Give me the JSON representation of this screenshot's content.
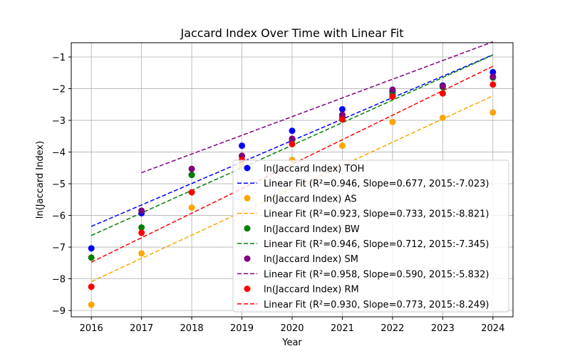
{
  "chart_data": {
    "type": "scatter",
    "title": "Jaccard Index Over Time with Linear Fit",
    "xlabel": "Year",
    "ylabel": "ln(Jaccard Index)",
    "xlim": [
      2015.6,
      2024.4
    ],
    "ylim": [
      -9.2,
      -0.55
    ],
    "x_ticks": [
      2016,
      2017,
      2018,
      2019,
      2020,
      2021,
      2022,
      2023,
      2024
    ],
    "y_ticks": [
      -9,
      -8,
      -7,
      -6,
      -5,
      -4,
      -3,
      -2,
      -1
    ],
    "y_tick_labels": [
      "−9",
      "−8",
      "−7",
      "−6",
      "−5",
      "−4",
      "−3",
      "−2",
      "−1"
    ],
    "grid": true,
    "legend_position": "lower-right",
    "series": [
      {
        "name": "ln(Jaccard Index) TOH",
        "fit_name": "Linear Fit (R²=0.946, Slope=0.677, 2015:-7.023)",
        "color": "#0000ff",
        "x": [
          2016,
          2017,
          2018,
          2019,
          2020,
          2021,
          2022,
          2023,
          2024
        ],
        "y": [
          -7.04,
          -5.93,
          -4.72,
          -3.8,
          -3.33,
          -2.65,
          -2.1,
          -1.9,
          -1.48
        ],
        "fit_slope": 0.677,
        "fit_intercept_2015": -7.023,
        "fit_x_range": [
          2016,
          2024
        ]
      },
      {
        "name": "ln(Jaccard Index) AS",
        "fit_name": "Linear Fit (R²=0.923, Slope=0.733, 2015:-8.821)",
        "color": "#ffa500",
        "x": [
          2016,
          2017,
          2018,
          2019,
          2020,
          2021,
          2022,
          2023,
          2024
        ],
        "y": [
          -8.82,
          -7.2,
          -5.75,
          -4.45,
          -4.25,
          -3.8,
          -3.05,
          -2.92,
          -2.75
        ],
        "fit_slope": 0.733,
        "fit_intercept_2015": -8.821,
        "fit_x_range": [
          2016,
          2024
        ]
      },
      {
        "name": "ln(Jaccard Index) BW",
        "fit_name": "Linear Fit (R²=0.946, Slope=0.712, 2015:-7.345)",
        "color": "#008000",
        "x": [
          2016,
          2017,
          2018,
          2019,
          2020,
          2021,
          2022,
          2023,
          2024
        ],
        "y": [
          -7.33,
          -6.38,
          -4.72,
          -4.12,
          -3.62,
          -2.9,
          -2.18,
          -1.95,
          -1.65
        ],
        "fit_slope": 0.712,
        "fit_intercept_2015": -7.345,
        "fit_x_range": [
          2016,
          2024
        ]
      },
      {
        "name": "ln(Jaccard Index) SM",
        "fit_name": "Linear Fit (R²=0.958, Slope=0.590, 2015:-5.832)",
        "color": "#800080",
        "x": [
          2017,
          2018,
          2019,
          2020,
          2021,
          2022,
          2023,
          2024
        ],
        "y": [
          -5.85,
          -4.53,
          -4.12,
          -3.58,
          -2.82,
          -2.03,
          -1.92,
          -1.62
        ],
        "fit_slope": 0.59,
        "fit_intercept_2015": -5.832,
        "fit_x_range": [
          2017,
          2024
        ]
      },
      {
        "name": "ln(Jaccard Index) RM",
        "fit_name": "Linear Fit (R²=0.930, Slope=0.773, 2015:-8.249)",
        "color": "#ff0000",
        "x": [
          2016,
          2017,
          2018,
          2019,
          2020,
          2021,
          2022,
          2023,
          2024
        ],
        "y": [
          -8.25,
          -6.55,
          -5.27,
          -4.25,
          -3.75,
          -2.97,
          -2.25,
          -2.15,
          -1.87
        ],
        "fit_slope": 0.773,
        "fit_intercept_2015": -8.249,
        "fit_x_range": [
          2016,
          2024
        ]
      }
    ]
  }
}
